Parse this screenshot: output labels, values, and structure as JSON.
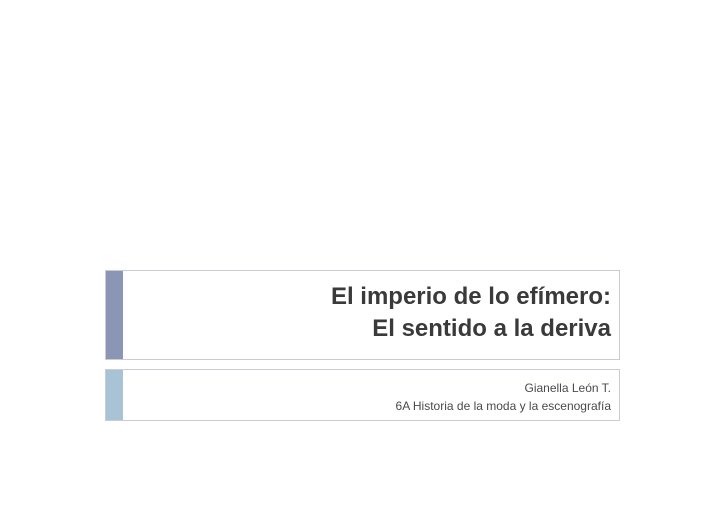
{
  "slide": {
    "title_line1": "El imperio de lo efímero:",
    "title_line2": "El sentido a la deriva",
    "author": "Gianella León T.",
    "course": "6A Historia de la moda y la escenografía"
  },
  "colors": {
    "title_accent": "#8b95b4",
    "subtitle_accent": "#a9c3d6",
    "border": "#c9cdd3",
    "text": "#3a3a3a"
  }
}
